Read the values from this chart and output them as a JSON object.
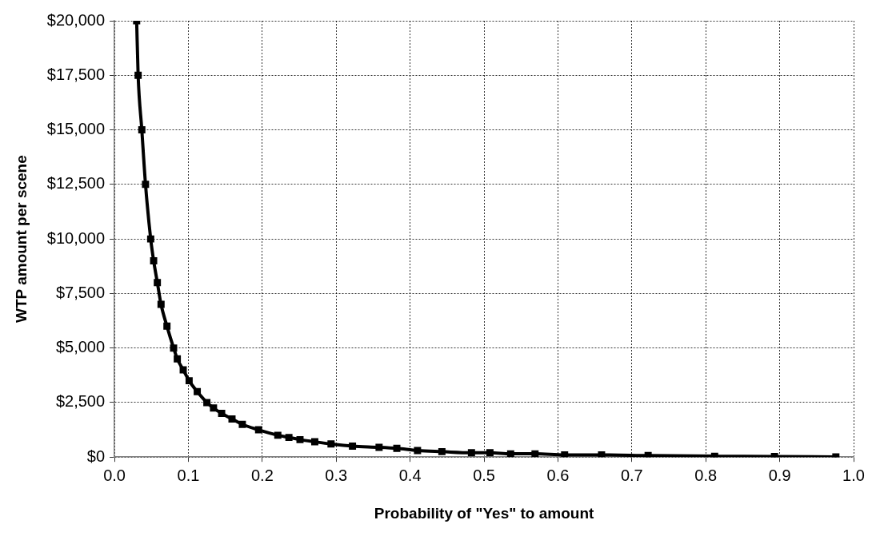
{
  "chart_data": {
    "type": "line",
    "xlabel": "Probability of \"Yes\" to amount",
    "ylabel": "WTP amount per scene",
    "xlim": [
      0,
      1
    ],
    "xticks": [
      {
        "value": 0,
        "label": "0.0"
      },
      {
        "value": 0.1,
        "label": "0.1"
      },
      {
        "value": 0.2,
        "label": "0.2"
      },
      {
        "value": 0.3,
        "label": "0.3"
      },
      {
        "value": 0.4,
        "label": "0.4"
      },
      {
        "value": 0.5,
        "label": "0.5"
      },
      {
        "value": 0.6,
        "label": "0.6"
      },
      {
        "value": 0.7,
        "label": "0.7"
      },
      {
        "value": 0.8,
        "label": "0.8"
      },
      {
        "value": 0.9,
        "label": "0.9"
      },
      {
        "value": 1,
        "label": "1.0"
      }
    ],
    "ylim": [
      0,
      20000
    ],
    "yticks": [
      {
        "value": 0,
        "label": "$0"
      },
      {
        "value": 2500,
        "label": "$2,500"
      },
      {
        "value": 5000,
        "label": "$5,000"
      },
      {
        "value": 7500,
        "label": "$7,500"
      },
      {
        "value": 10000,
        "label": "$10,000"
      },
      {
        "value": 12500,
        "label": "$12,500"
      },
      {
        "value": 15000,
        "label": "$15,000"
      },
      {
        "value": 17500,
        "label": "$17,500"
      },
      {
        "value": 20000,
        "label": "$20,000"
      }
    ],
    "grid": true,
    "marker": "square",
    "line_style": "solid",
    "series": [
      {
        "color": "#000000",
        "x": [
          0.03,
          0.032,
          0.037,
          0.042,
          0.049,
          0.053,
          0.058,
          0.063,
          0.071,
          0.08,
          0.085,
          0.093,
          0.101,
          0.112,
          0.125,
          0.134,
          0.145,
          0.159,
          0.173,
          0.195,
          0.221,
          0.236,
          0.251,
          0.271,
          0.293,
          0.322,
          0.358,
          0.382,
          0.41,
          0.443,
          0.483,
          0.508,
          0.536,
          0.569,
          0.609,
          0.659,
          0.722,
          0.812,
          0.893,
          0.976
        ],
        "values": [
          20000,
          17500,
          15000,
          12500,
          10000,
          9000,
          8000,
          7000,
          6000,
          5000,
          4500,
          4000,
          3500,
          3000,
          2500,
          2250,
          2000,
          1750,
          1500,
          1250,
          1000,
          900,
          800,
          700,
          600,
          500,
          450,
          400,
          300,
          250,
          200,
          200,
          150,
          150,
          100,
          100,
          70,
          40,
          30,
          10
        ]
      }
    ]
  }
}
